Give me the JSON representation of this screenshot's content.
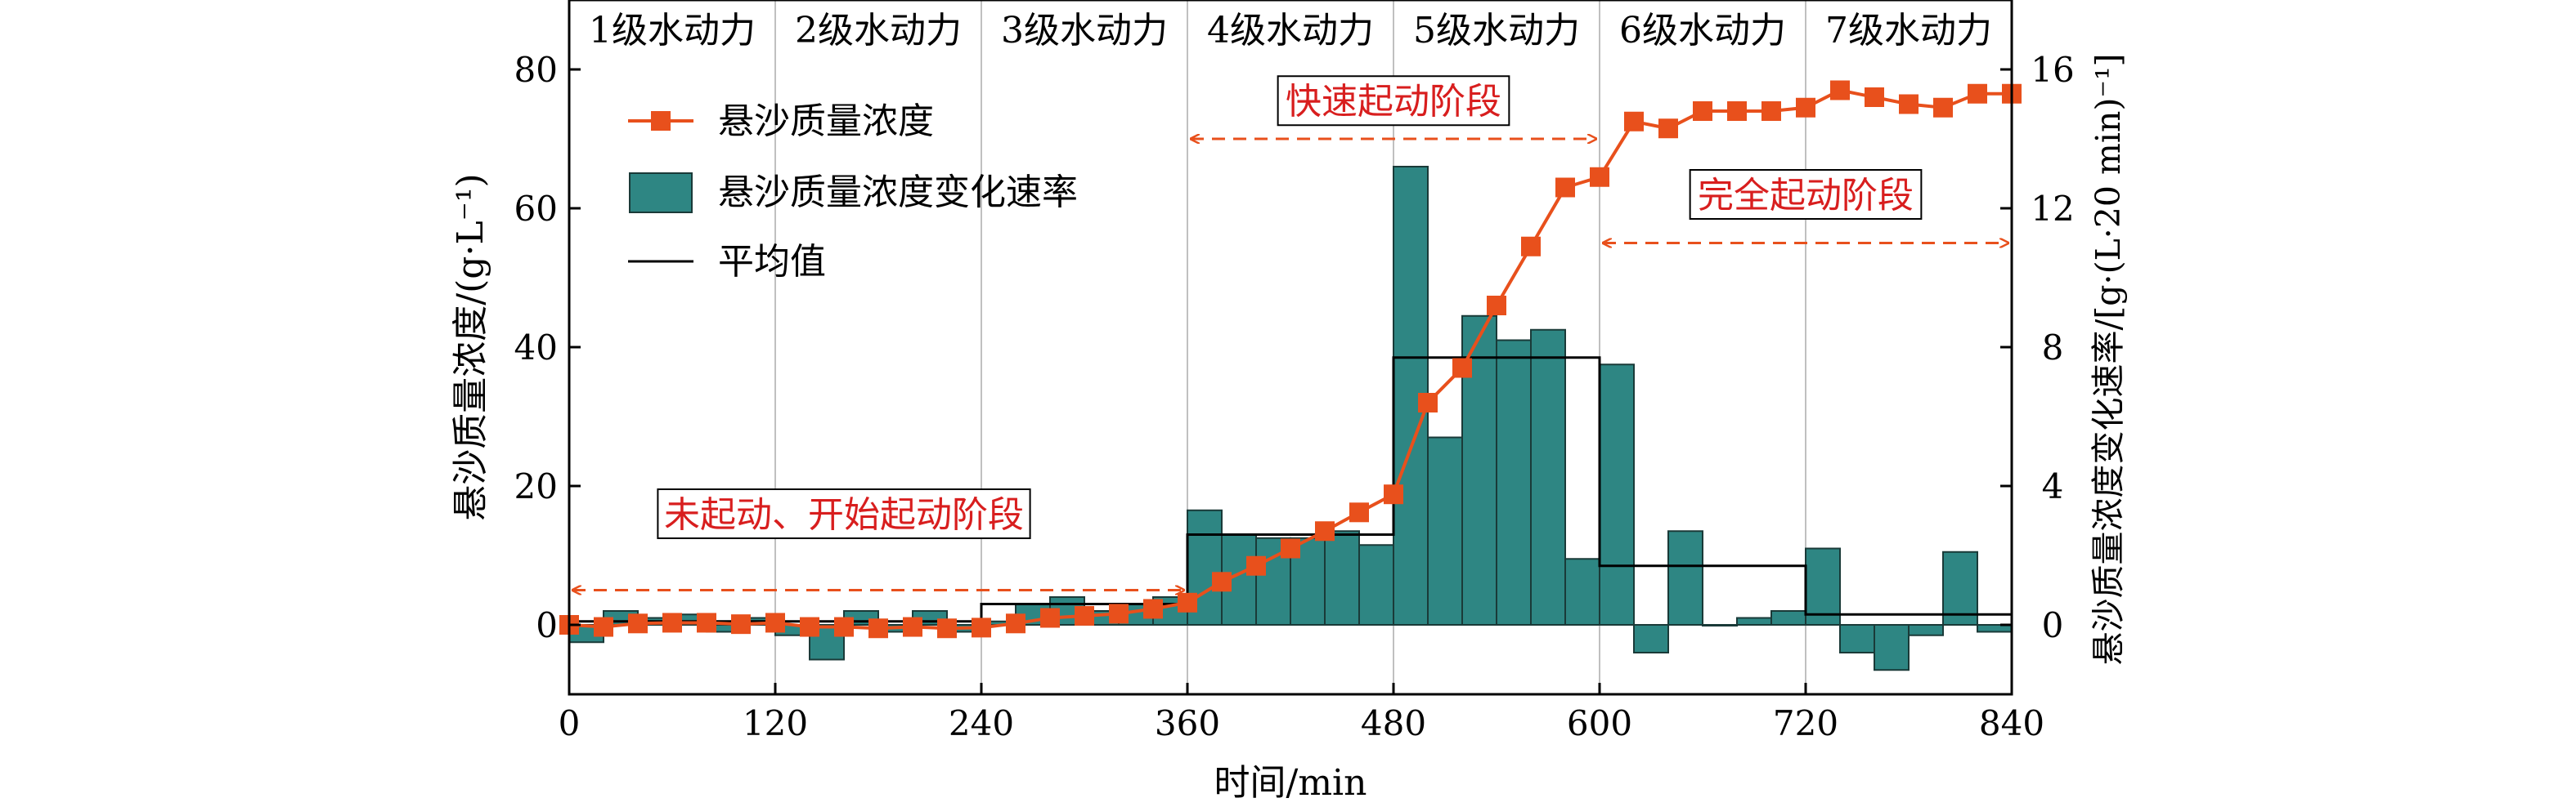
{
  "chart_data": {
    "type": "bar+line",
    "x_ticks": [
      0,
      120,
      240,
      360,
      480,
      600,
      720,
      840
    ],
    "x_tick_labels": [
      "0",
      "120",
      "240",
      "360",
      "480",
      "600",
      "720",
      "840"
    ],
    "xlabel": "时间/min",
    "xlim": [
      0,
      840
    ],
    "ylabel_left": "悬沙质量浓度/(g·L⁻¹)",
    "ylim_left": [
      -10,
      90
    ],
    "y_ticks_left": [
      0,
      20,
      40,
      60,
      80
    ],
    "y_tick_labels_left": [
      "0",
      "20",
      "40",
      "60",
      "80"
    ],
    "ylabel_right": "悬沙质量浓度变化速率/[g·(L·20 min)⁻¹]",
    "ylim_right": [
      -2,
      18
    ],
    "y_ticks_right": [
      0,
      4,
      8,
      12,
      16
    ],
    "y_tick_labels_right": [
      "0",
      "4",
      "8",
      "12",
      "16"
    ],
    "grid": "vertical lines at each 120 min stage boundary",
    "stages": [
      {
        "label": "1级水动力",
        "start": 0,
        "end": 120
      },
      {
        "label": "2级水动力",
        "start": 120,
        "end": 240
      },
      {
        "label": "3级水动力",
        "start": 240,
        "end": 360
      },
      {
        "label": "4级水动力",
        "start": 360,
        "end": 480
      },
      {
        "label": "5级水动力",
        "start": 480,
        "end": 600
      },
      {
        "label": "6级水动力",
        "start": 600,
        "end": 720
      },
      {
        "label": "7级水动力",
        "start": 720,
        "end": 840
      }
    ],
    "legend": {
      "placement": "top-left",
      "concentration": "悬沙质量浓度",
      "rate": "悬沙质量浓度变化速率",
      "mean": "平均值"
    },
    "colors": {
      "concentration": "#e8501c",
      "rate": "#2e8683",
      "rate_edge": "#1a3a38",
      "mean": "#000000",
      "annotation_text": "#d81e1e",
      "arrow": "#e8501c",
      "grid": "#c0c0c0"
    },
    "series": [
      {
        "name": "悬沙质量浓度",
        "kind": "line-markers",
        "axis": "left",
        "x": [
          0,
          20,
          40,
          60,
          80,
          100,
          120,
          140,
          160,
          180,
          200,
          220,
          240,
          260,
          280,
          300,
          320,
          340,
          360,
          380,
          400,
          420,
          440,
          460,
          480,
          500,
          520,
          540,
          560,
          580,
          600,
          620,
          640,
          660,
          680,
          700,
          720,
          740,
          760,
          780,
          800,
          820,
          840
        ],
        "values": [
          0,
          -0.3,
          0.2,
          0.3,
          0.3,
          0.1,
          0.3,
          -0.3,
          -0.3,
          -0.5,
          -0.3,
          -0.5,
          -0.4,
          0.2,
          1.0,
          1.3,
          1.6,
          2.3,
          3.2,
          6.2,
          8.5,
          11.0,
          13.5,
          16.2,
          18.8,
          32.0,
          37.0,
          46.0,
          54.5,
          63.0,
          64.5,
          72.5,
          71.5,
          74.0,
          74.0,
          74.0,
          74.5,
          77.0,
          76.0,
          75.0,
          74.5,
          76.5,
          76.5
        ]
      },
      {
        "name": "悬沙质量浓度变化速率",
        "kind": "bar",
        "axis": "right",
        "bin_start": [
          0,
          20,
          40,
          60,
          80,
          100,
          120,
          140,
          160,
          180,
          200,
          220,
          240,
          260,
          280,
          300,
          320,
          340,
          360,
          380,
          400,
          420,
          440,
          460,
          480,
          500,
          520,
          540,
          560,
          580,
          600,
          620,
          640,
          660,
          680,
          700,
          720,
          740,
          760,
          780,
          800,
          820
        ],
        "bin_width": 20,
        "values": [
          -0.5,
          0.4,
          0.2,
          0.3,
          -0.2,
          0.2,
          -0.3,
          -1.0,
          0.4,
          -0.2,
          0.4,
          -0.2,
          0.1,
          0.6,
          0.8,
          0.4,
          0.6,
          0.8,
          3.3,
          2.6,
          2.5,
          2.5,
          2.7,
          2.3,
          13.2,
          5.4,
          8.9,
          8.2,
          8.5,
          1.9,
          7.5,
          -0.8,
          2.7,
          0.0,
          0.2,
          0.4,
          2.2,
          -0.8,
          -1.3,
          -0.3,
          2.1,
          -0.2
        ]
      },
      {
        "name": "平均值",
        "kind": "step",
        "axis": "right",
        "segments": [
          {
            "start": 0,
            "end": 240,
            "value": 0.1
          },
          {
            "start": 240,
            "end": 360,
            "value": 0.6
          },
          {
            "start": 360,
            "end": 480,
            "value": 2.6
          },
          {
            "start": 480,
            "end": 600,
            "value": 7.7
          },
          {
            "start": 600,
            "end": 720,
            "value": 1.7
          },
          {
            "start": 720,
            "end": 840,
            "value": 0.3
          }
        ]
      }
    ],
    "annotations": [
      {
        "text": "未起动、开始起动阶段",
        "arrow_from": 0,
        "arrow_to": 360,
        "arrow_y_left": 5,
        "text_x": 160,
        "text_y_left": 16,
        "arrow_style": "double-headed dashed"
      },
      {
        "text": "快速起动阶段",
        "arrow_from": 360,
        "arrow_to": 600,
        "arrow_y_left": 70,
        "text_x": 480,
        "text_y_left": 75.5,
        "arrow_style": "double-headed dashed"
      },
      {
        "text": "完全起动阶段",
        "arrow_from": 600,
        "arrow_to": 840,
        "arrow_y_left": 55,
        "text_x": 720,
        "text_y_left": 62,
        "arrow_style": "double-headed dashed"
      }
    ]
  }
}
